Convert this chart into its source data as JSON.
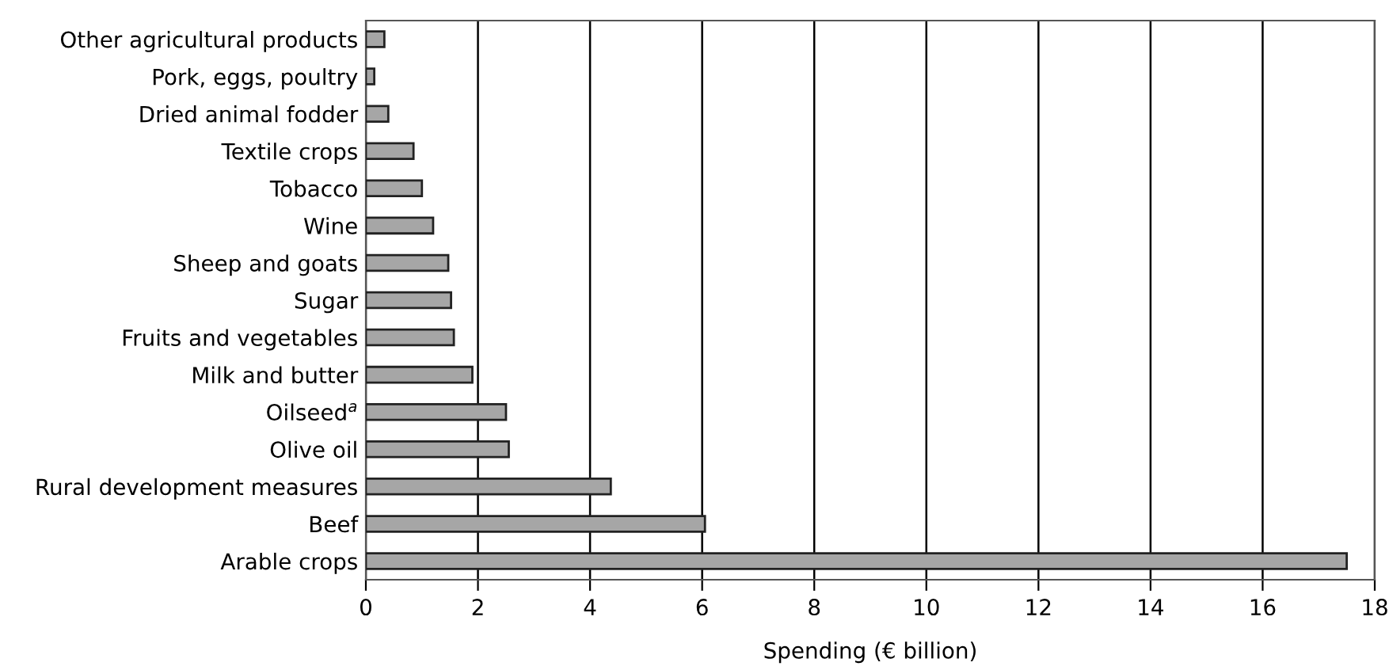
{
  "chart_data": {
    "type": "bar",
    "orientation": "horizontal",
    "xlabel": "Spending (€ billion)",
    "categories": [
      "Other agricultural products",
      "Pork, eggs, poultry",
      "Dried animal fodder",
      "Textile crops",
      "Tobacco",
      "Wine",
      "Sheep and goats",
      "Sugar",
      "Fruits and vegetables",
      "Milk and butter",
      "Oilseed$^{a}$",
      "Olive oil",
      "Rural development measures",
      "Beef",
      "Arable crops"
    ],
    "values": [
      0.33,
      0.15,
      0.4,
      0.85,
      1.0,
      1.2,
      1.47,
      1.52,
      1.57,
      1.9,
      2.5,
      2.55,
      4.37,
      6.05,
      17.5
    ],
    "color": "#a6a6a6",
    "xlim": [
      0,
      18
    ],
    "xticks": [
      0,
      2,
      4,
      6,
      8,
      10,
      12,
      14,
      16,
      18
    ],
    "grid": "x"
  }
}
